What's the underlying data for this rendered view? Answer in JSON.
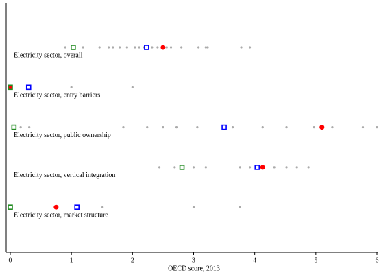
{
  "chart_data": {
    "type": "dotplot",
    "categories": [
      "Electricity sector, overall",
      "Electricity sector, entry barriers",
      "Electricity sector, public ownership",
      "Electricity sector, vertical integration",
      "Electricity sector, market structure"
    ],
    "xlabel": "OECD score, 2013",
    "xlim": [
      0,
      6
    ],
    "xticks": [
      0,
      1,
      2,
      3,
      4,
      5,
      6
    ],
    "series": [
      {
        "color": "#aaaaaa",
        "marker": "dot",
        "values": [
          [
            0.9,
            1.19,
            1.46,
            1.61,
            1.68,
            1.79,
            1.91,
            2.04,
            2.11,
            2.19,
            2.32,
            2.41,
            2.56,
            2.63,
            2.8,
            3.08,
            3.2,
            3.23,
            3.78,
            3.92
          ],
          [
            1.0,
            2.0
          ],
          [
            0.17,
            0.31,
            1.85,
            2.24,
            2.5,
            2.72,
            3.06,
            3.64,
            4.13,
            4.52,
            4.97,
            5.27,
            5.77,
            6.0
          ],
          [
            2.44,
            2.69,
            3.0,
            3.2,
            3.76,
            3.92,
            4.32,
            4.52,
            4.69,
            4.88
          ],
          [
            1.51,
            3.0,
            3.76
          ]
        ]
      },
      {
        "color": "#ff0000",
        "marker": "circle",
        "values": [
          2.5,
          0,
          5.1,
          4.13,
          0.75
        ]
      },
      {
        "color": "#228b22",
        "marker": "square",
        "values": [
          1.03,
          0,
          0.06,
          2.81,
          0
        ]
      },
      {
        "color": "#0000ff",
        "marker": "square",
        "values": [
          2.23,
          0.3,
          3.5,
          4.04,
          1.09
        ]
      }
    ]
  }
}
